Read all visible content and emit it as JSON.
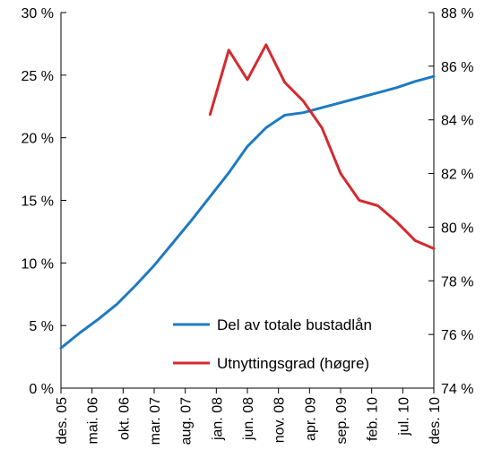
{
  "chart_data": {
    "type": "line",
    "title": "",
    "xlabel": "",
    "ylabel_left": "",
    "ylabel_right": "",
    "x_tick_labels": [
      "des. 05",
      "mai. 06",
      "okt. 06",
      "mar. 07",
      "aug. 07",
      "jan. 08",
      "jun. 08",
      "nov. 08",
      "apr. 09",
      "sep. 09",
      "feb. 10",
      "jul. 10",
      "des. 10"
    ],
    "y_left": {
      "range": [
        0,
        30
      ],
      "ticks": [
        0,
        5,
        10,
        15,
        20,
        25,
        30
      ],
      "tick_labels": [
        "0 %",
        "5 %",
        "10 %",
        "15 %",
        "20 %",
        "25 %",
        "30 %"
      ]
    },
    "y_right": {
      "range": [
        74,
        88
      ],
      "ticks": [
        74,
        76,
        78,
        80,
        82,
        84,
        86,
        88
      ],
      "tick_labels": [
        "74 %",
        "76 %",
        "78 %",
        "80 %",
        "82 %",
        "84 %",
        "86 %",
        "88 %"
      ]
    },
    "grid": false,
    "legend_position": "bottom-right",
    "series": [
      {
        "name": "Del av totale bustadlån",
        "axis": "left",
        "color": "#1f7ac1",
        "points": [
          [
            0,
            3.2
          ],
          [
            0.6,
            4.4
          ],
          [
            1.2,
            5.5
          ],
          [
            1.8,
            6.7
          ],
          [
            2.4,
            8.2
          ],
          [
            3.0,
            9.8
          ],
          [
            3.6,
            11.6
          ],
          [
            4.2,
            13.4
          ],
          [
            4.8,
            15.3
          ],
          [
            5.4,
            17.2
          ],
          [
            6.0,
            19.3
          ],
          [
            6.6,
            20.8
          ],
          [
            7.2,
            21.8
          ],
          [
            7.8,
            22.0
          ],
          [
            8.4,
            22.4
          ],
          [
            9.0,
            22.8
          ],
          [
            9.6,
            23.2
          ],
          [
            10.2,
            23.6
          ],
          [
            10.8,
            24.0
          ],
          [
            11.4,
            24.5
          ],
          [
            12.0,
            24.9
          ]
        ]
      },
      {
        "name": "Utnyttingsgrad (høgre)",
        "axis": "right",
        "color": "#d42a2f",
        "points": [
          [
            4.8,
            84.2
          ],
          [
            5.4,
            86.6
          ],
          [
            6.0,
            85.5
          ],
          [
            6.6,
            86.8
          ],
          [
            7.2,
            85.4
          ],
          [
            7.8,
            84.7
          ],
          [
            8.4,
            83.7
          ],
          [
            9.0,
            82.0
          ],
          [
            9.6,
            81.0
          ],
          [
            10.2,
            80.8
          ],
          [
            10.8,
            80.2
          ],
          [
            11.4,
            79.5
          ],
          [
            12.0,
            79.2
          ]
        ]
      }
    ]
  }
}
